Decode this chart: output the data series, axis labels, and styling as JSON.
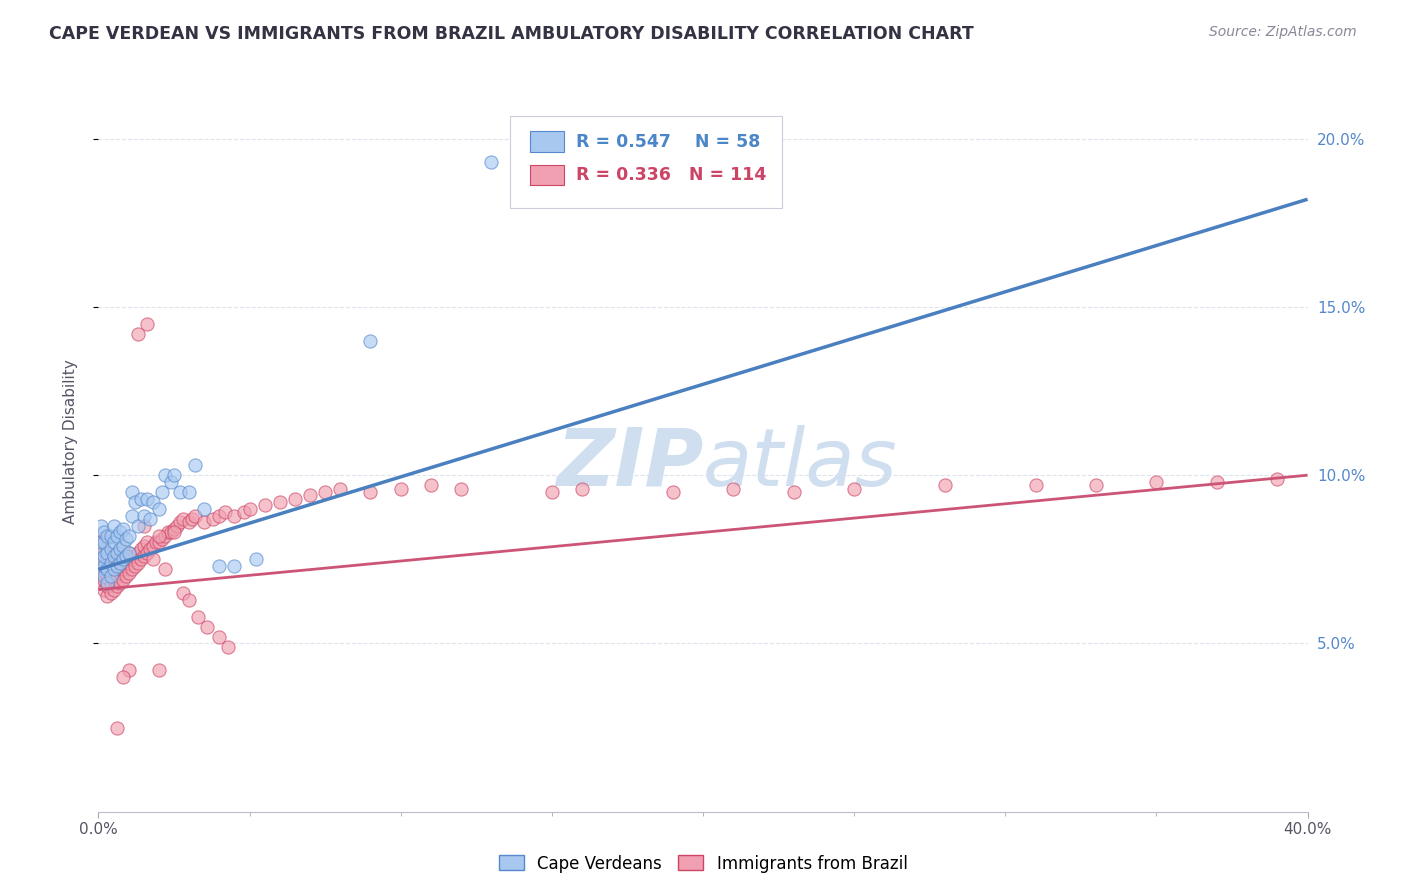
{
  "title": "CAPE VERDEAN VS IMMIGRANTS FROM BRAZIL AMBULATORY DISABILITY CORRELATION CHART",
  "source": "Source: ZipAtlas.com",
  "ylabel": "Ambulatory Disability",
  "legend_label_blue": "Cape Verdeans",
  "legend_label_pink": "Immigrants from Brazil",
  "legend_R_blue": "0.547",
  "legend_N_blue": "58",
  "legend_R_pink": "0.336",
  "legend_N_pink": "114",
  "color_blue_fill": "#a8c8f0",
  "color_blue_edge": "#5588cc",
  "color_pink_fill": "#f0a0b0",
  "color_pink_edge": "#cc4466",
  "color_blue_line": "#4a7fc0",
  "color_pink_line": "#cc5577",
  "color_watermark": "#d0dff0",
  "xlim": [
    0.0,
    0.4
  ],
  "ylim": [
    0.0,
    0.22
  ],
  "ytick_vals": [
    0.05,
    0.1,
    0.15,
    0.2
  ],
  "blue_scatter_x": [
    0.001,
    0.001,
    0.001,
    0.001,
    0.001,
    0.002,
    0.002,
    0.002,
    0.002,
    0.002,
    0.003,
    0.003,
    0.003,
    0.003,
    0.004,
    0.004,
    0.004,
    0.004,
    0.005,
    0.005,
    0.005,
    0.005,
    0.006,
    0.006,
    0.006,
    0.007,
    0.007,
    0.007,
    0.008,
    0.008,
    0.008,
    0.009,
    0.009,
    0.01,
    0.01,
    0.011,
    0.011,
    0.012,
    0.013,
    0.014,
    0.015,
    0.016,
    0.017,
    0.018,
    0.02,
    0.021,
    0.022,
    0.024,
    0.025,
    0.027,
    0.03,
    0.032,
    0.035,
    0.04,
    0.045,
    0.052,
    0.09,
    0.13
  ],
  "blue_scatter_y": [
    0.072,
    0.075,
    0.078,
    0.08,
    0.085,
    0.07,
    0.073,
    0.076,
    0.08,
    0.083,
    0.068,
    0.072,
    0.077,
    0.082,
    0.07,
    0.074,
    0.078,
    0.082,
    0.072,
    0.076,
    0.08,
    0.085,
    0.073,
    0.077,
    0.082,
    0.074,
    0.078,
    0.083,
    0.075,
    0.079,
    0.084,
    0.076,
    0.081,
    0.077,
    0.082,
    0.095,
    0.088,
    0.092,
    0.085,
    0.093,
    0.088,
    0.093,
    0.087,
    0.092,
    0.09,
    0.095,
    0.1,
    0.098,
    0.1,
    0.095,
    0.095,
    0.103,
    0.09,
    0.073,
    0.073,
    0.075,
    0.14,
    0.193
  ],
  "pink_scatter_x": [
    0.001,
    0.001,
    0.001,
    0.001,
    0.001,
    0.002,
    0.002,
    0.002,
    0.002,
    0.002,
    0.002,
    0.003,
    0.003,
    0.003,
    0.003,
    0.003,
    0.004,
    0.004,
    0.004,
    0.004,
    0.005,
    0.005,
    0.005,
    0.005,
    0.006,
    0.006,
    0.006,
    0.006,
    0.007,
    0.007,
    0.007,
    0.007,
    0.008,
    0.008,
    0.008,
    0.009,
    0.009,
    0.009,
    0.01,
    0.01,
    0.01,
    0.011,
    0.011,
    0.012,
    0.012,
    0.013,
    0.013,
    0.014,
    0.014,
    0.015,
    0.015,
    0.016,
    0.016,
    0.017,
    0.018,
    0.019,
    0.02,
    0.021,
    0.022,
    0.023,
    0.024,
    0.025,
    0.026,
    0.027,
    0.028,
    0.03,
    0.031,
    0.032,
    0.035,
    0.038,
    0.04,
    0.042,
    0.045,
    0.048,
    0.05,
    0.055,
    0.06,
    0.065,
    0.07,
    0.075,
    0.08,
    0.09,
    0.1,
    0.11,
    0.12,
    0.15,
    0.16,
    0.19,
    0.21,
    0.23,
    0.25,
    0.28,
    0.31,
    0.33,
    0.35,
    0.37,
    0.39,
    0.015,
    0.02,
    0.025,
    0.018,
    0.022,
    0.028,
    0.03,
    0.033,
    0.036,
    0.04,
    0.043,
    0.016,
    0.013,
    0.02,
    0.01,
    0.008,
    0.006
  ],
  "pink_scatter_y": [
    0.068,
    0.071,
    0.074,
    0.077,
    0.08,
    0.066,
    0.069,
    0.072,
    0.075,
    0.078,
    0.081,
    0.064,
    0.067,
    0.07,
    0.073,
    0.076,
    0.065,
    0.068,
    0.071,
    0.074,
    0.066,
    0.069,
    0.072,
    0.075,
    0.067,
    0.07,
    0.073,
    0.076,
    0.068,
    0.071,
    0.074,
    0.077,
    0.069,
    0.072,
    0.075,
    0.07,
    0.073,
    0.076,
    0.071,
    0.074,
    0.077,
    0.072,
    0.075,
    0.073,
    0.076,
    0.074,
    0.077,
    0.075,
    0.078,
    0.076,
    0.079,
    0.077,
    0.08,
    0.078,
    0.079,
    0.08,
    0.08,
    0.081,
    0.082,
    0.083,
    0.083,
    0.084,
    0.085,
    0.086,
    0.087,
    0.086,
    0.087,
    0.088,
    0.086,
    0.087,
    0.088,
    0.089,
    0.088,
    0.089,
    0.09,
    0.091,
    0.092,
    0.093,
    0.094,
    0.095,
    0.096,
    0.095,
    0.096,
    0.097,
    0.096,
    0.095,
    0.096,
    0.095,
    0.096,
    0.095,
    0.096,
    0.097,
    0.097,
    0.097,
    0.098,
    0.098,
    0.099,
    0.085,
    0.082,
    0.083,
    0.075,
    0.072,
    0.065,
    0.063,
    0.058,
    0.055,
    0.052,
    0.049,
    0.145,
    0.142,
    0.042,
    0.042,
    0.04,
    0.025
  ],
  "background_color": "#ffffff",
  "grid_color": "#dde4ee"
}
